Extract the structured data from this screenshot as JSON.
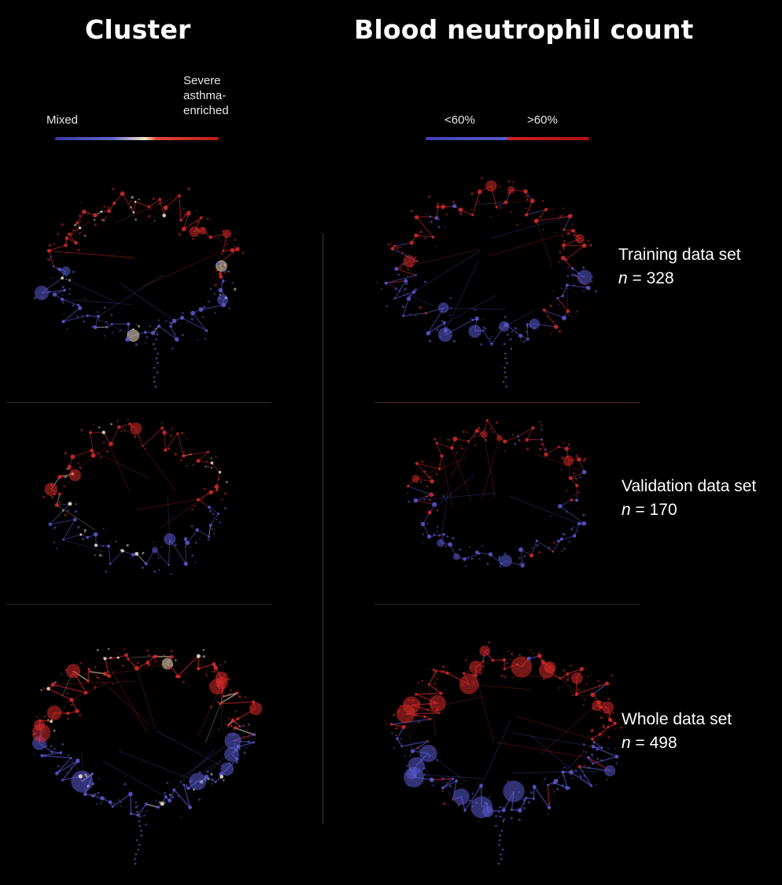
{
  "titles": {
    "cluster": "Cluster",
    "neutrophil": "Blood neutrophil count"
  },
  "legend_cluster": {
    "low": "Mixed",
    "high": "Severe asthma-enriched",
    "colors": [
      "#3a3aa8",
      "#f4e9c8",
      "#c01818"
    ]
  },
  "legend_neutrophil": {
    "low": "<60%",
    "high": ">60%",
    "colors": [
      "#4040b8",
      "#d02020"
    ]
  },
  "rows": [
    {
      "label": "Training data set",
      "n_symbol": "n",
      "n_text": " = 328"
    },
    {
      "label": "Validation data set",
      "n_symbol": "n",
      "n_text": " = 170"
    },
    {
      "label": "Whole data set",
      "n_symbol": "n",
      "n_text": " = 498"
    }
  ],
  "colors": {
    "background": "#000000",
    "blue": "#5a5ad2",
    "red": "#d62a2a",
    "cream": "#f2e6c6"
  }
}
